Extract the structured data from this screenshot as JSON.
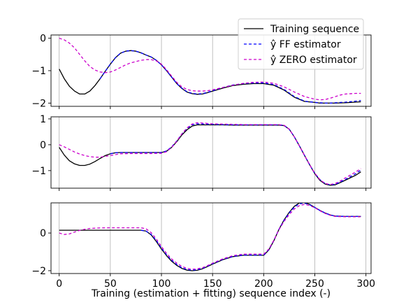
{
  "chart_data": [
    {
      "type": "line",
      "panel": "top",
      "xlim": [
        -8,
        305
      ],
      "ylim": [
        -2.1,
        0.1
      ],
      "xticks": [
        0,
        50,
        100,
        150,
        200,
        250,
        300
      ],
      "yticks": [
        0,
        -1,
        -2
      ],
      "ytick_labels": [
        "0",
        "−1",
        "−2"
      ],
      "grid_x": true,
      "legend_position": "top-right",
      "legend": [
        {
          "label": "Training sequence",
          "color": "#000000",
          "style": "solid"
        },
        {
          "label": "ŷ FF estimator",
          "color": "#0000ff",
          "style": "dashed"
        },
        {
          "label": "ŷ ZERO estimator",
          "color": "#cc00cc",
          "style": "dashed"
        }
      ],
      "series": [
        {
          "name": "Training sequence",
          "color": "#000000",
          "dash": "",
          "x": [
            0,
            5,
            10,
            15,
            20,
            25,
            30,
            35,
            40,
            45,
            50,
            55,
            60,
            65,
            70,
            75,
            80,
            85,
            90,
            95,
            100,
            105,
            110,
            115,
            120,
            125,
            130,
            135,
            140,
            145,
            150,
            160,
            170,
            180,
            190,
            200,
            210,
            220,
            230,
            240,
            250,
            255,
            260,
            265,
            270,
            280,
            290,
            295
          ],
          "y": [
            -0.95,
            -1.25,
            -1.48,
            -1.63,
            -1.72,
            -1.72,
            -1.63,
            -1.46,
            -1.25,
            -1.02,
            -0.8,
            -0.6,
            -0.46,
            -0.4,
            -0.38,
            -0.4,
            -0.45,
            -0.52,
            -0.58,
            -0.68,
            -0.82,
            -1.0,
            -1.2,
            -1.4,
            -1.55,
            -1.66,
            -1.71,
            -1.73,
            -1.72,
            -1.68,
            -1.63,
            -1.54,
            -1.46,
            -1.42,
            -1.4,
            -1.4,
            -1.45,
            -1.6,
            -1.82,
            -1.95,
            -1.98,
            -2.0,
            -2.0,
            -2.0,
            -2.0,
            -1.99,
            -1.97,
            -1.96
          ]
        },
        {
          "name": "ŷ FF estimator",
          "color": "#0000ff",
          "dash": "4,3",
          "x": [
            40,
            45,
            50,
            55,
            60,
            65,
            70,
            75,
            80,
            85,
            90,
            95,
            100,
            105,
            110,
            115,
            120,
            125,
            130,
            135,
            140,
            145,
            150,
            160,
            170,
            180,
            190,
            200,
            210,
            220,
            230,
            240,
            250,
            255,
            260,
            265,
            270,
            280,
            290,
            295
          ],
          "y": [
            -1.25,
            -1.02,
            -0.8,
            -0.6,
            -0.46,
            -0.4,
            -0.38,
            -0.4,
            -0.45,
            -0.52,
            -0.58,
            -0.68,
            -0.82,
            -1.0,
            -1.2,
            -1.4,
            -1.54,
            -1.65,
            -1.7,
            -1.72,
            -1.71,
            -1.67,
            -1.62,
            -1.52,
            -1.44,
            -1.4,
            -1.38,
            -1.38,
            -1.43,
            -1.58,
            -1.8,
            -1.94,
            -1.98,
            -1.99,
            -2.0,
            -2.0,
            -1.99,
            -1.97,
            -1.94,
            -1.92
          ]
        },
        {
          "name": "ŷ ZERO estimator",
          "color": "#cc00cc",
          "dash": "4,3",
          "x": [
            0,
            5,
            10,
            15,
            20,
            25,
            30,
            35,
            40,
            45,
            50,
            55,
            60,
            65,
            70,
            75,
            80,
            85,
            90,
            95,
            100,
            105,
            110,
            115,
            120,
            125,
            130,
            135,
            140,
            145,
            150,
            160,
            170,
            180,
            190,
            200,
            210,
            220,
            230,
            240,
            250,
            255,
            260,
            265,
            270,
            275,
            280,
            290,
            295
          ],
          "y": [
            0.0,
            -0.05,
            -0.15,
            -0.3,
            -0.5,
            -0.7,
            -0.87,
            -0.98,
            -1.04,
            -1.06,
            -1.04,
            -0.98,
            -0.9,
            -0.82,
            -0.76,
            -0.72,
            -0.68,
            -0.66,
            -0.66,
            -0.7,
            -0.8,
            -0.97,
            -1.17,
            -1.36,
            -1.5,
            -1.58,
            -1.62,
            -1.63,
            -1.63,
            -1.62,
            -1.59,
            -1.52,
            -1.45,
            -1.39,
            -1.36,
            -1.35,
            -1.39,
            -1.5,
            -1.66,
            -1.8,
            -1.88,
            -1.9,
            -1.89,
            -1.85,
            -1.8,
            -1.75,
            -1.72,
            -1.7,
            -1.7
          ]
        }
      ]
    },
    {
      "type": "line",
      "panel": "middle",
      "xlim": [
        -8,
        305
      ],
      "ylim": [
        -1.68,
        1.08
      ],
      "xticks": [
        0,
        50,
        100,
        150,
        200,
        250,
        300
      ],
      "yticks": [
        1,
        0,
        -1
      ],
      "ytick_labels": [
        "1",
        "0",
        "−1"
      ],
      "grid_x": true,
      "series": [
        {
          "name": "Training sequence",
          "color": "#000000",
          "dash": "",
          "x": [
            0,
            5,
            10,
            15,
            20,
            25,
            30,
            35,
            40,
            45,
            50,
            55,
            60,
            65,
            70,
            80,
            90,
            100,
            105,
            110,
            115,
            120,
            125,
            130,
            135,
            140,
            150,
            160,
            170,
            180,
            190,
            200,
            210,
            215,
            220,
            225,
            230,
            235,
            240,
            245,
            250,
            255,
            260,
            265,
            270,
            275,
            280,
            290,
            295
          ],
          "y": [
            -0.1,
            -0.4,
            -0.62,
            -0.74,
            -0.8,
            -0.8,
            -0.75,
            -0.65,
            -0.53,
            -0.42,
            -0.35,
            -0.31,
            -0.3,
            -0.3,
            -0.3,
            -0.3,
            -0.3,
            -0.3,
            -0.25,
            -0.1,
            0.12,
            0.38,
            0.58,
            0.72,
            0.77,
            0.77,
            0.77,
            0.77,
            0.76,
            0.76,
            0.76,
            0.76,
            0.76,
            0.76,
            0.74,
            0.6,
            0.3,
            -0.05,
            -0.42,
            -0.78,
            -1.12,
            -1.38,
            -1.52,
            -1.57,
            -1.55,
            -1.46,
            -1.37,
            -1.18,
            -1.05
          ]
        },
        {
          "name": "ŷ FF estimator",
          "color": "#0000ff",
          "dash": "4,3",
          "x": [
            50,
            55,
            60,
            65,
            70,
            80,
            90,
            100,
            105,
            110,
            115,
            120,
            125,
            130,
            135,
            140,
            150,
            160,
            170,
            180,
            190,
            200,
            210,
            215,
            220,
            225,
            230,
            235,
            240,
            245,
            250,
            255,
            260,
            265,
            270,
            275,
            280,
            290,
            295
          ],
          "y": [
            -0.35,
            -0.31,
            -0.3,
            -0.3,
            -0.3,
            -0.3,
            -0.3,
            -0.3,
            -0.24,
            -0.08,
            0.15,
            0.42,
            0.63,
            0.77,
            0.81,
            0.8,
            0.79,
            0.78,
            0.77,
            0.77,
            0.77,
            0.77,
            0.77,
            0.77,
            0.75,
            0.6,
            0.3,
            -0.05,
            -0.42,
            -0.78,
            -1.1,
            -1.35,
            -1.5,
            -1.55,
            -1.53,
            -1.44,
            -1.34,
            -1.12,
            -0.98
          ]
        },
        {
          "name": "ŷ ZERO estimator",
          "color": "#cc00cc",
          "dash": "4,3",
          "x": [
            0,
            5,
            10,
            15,
            20,
            25,
            30,
            35,
            40,
            45,
            50,
            55,
            60,
            70,
            80,
            90,
            100,
            105,
            110,
            115,
            120,
            125,
            130,
            135,
            140,
            150,
            160,
            170,
            180,
            190,
            200,
            210,
            215,
            220,
            225,
            230,
            235,
            240,
            245,
            250,
            255,
            260,
            265,
            270,
            275,
            280,
            290,
            295
          ],
          "y": [
            0.0,
            -0.08,
            -0.18,
            -0.28,
            -0.36,
            -0.42,
            -0.46,
            -0.48,
            -0.48,
            -0.45,
            -0.42,
            -0.38,
            -0.35,
            -0.34,
            -0.34,
            -0.34,
            -0.33,
            -0.27,
            -0.1,
            0.14,
            0.42,
            0.65,
            0.8,
            0.85,
            0.84,
            0.81,
            0.8,
            0.79,
            0.78,
            0.78,
            0.78,
            0.78,
            0.78,
            0.75,
            0.6,
            0.3,
            -0.05,
            -0.42,
            -0.78,
            -1.1,
            -1.35,
            -1.5,
            -1.54,
            -1.5,
            -1.4,
            -1.28,
            -1.05,
            -0.92
          ]
        }
      ]
    },
    {
      "type": "line",
      "panel": "bottom",
      "xlim": [
        -8,
        305
      ],
      "ylim": [
        -2.15,
        1.6
      ],
      "xticks": [
        0,
        50,
        100,
        150,
        200,
        250,
        300
      ],
      "xtick_labels": [
        "0",
        "50",
        "100",
        "150",
        "200",
        "250",
        "300"
      ],
      "yticks": [
        0,
        -2
      ],
      "ytick_labels": [
        "0",
        "−2"
      ],
      "grid_x": true,
      "xlabel": "Training (estimation + fitting) sequence index (-)",
      "series": [
        {
          "name": "Training sequence",
          "color": "#000000",
          "dash": "",
          "x": [
            0,
            20,
            40,
            60,
            80,
            85,
            90,
            95,
            100,
            105,
            110,
            115,
            120,
            125,
            130,
            135,
            140,
            145,
            150,
            160,
            170,
            180,
            190,
            200,
            205,
            210,
            215,
            220,
            225,
            230,
            235,
            240,
            245,
            250,
            255,
            260,
            265,
            270,
            280,
            290,
            295
          ],
          "y": [
            0.15,
            0.15,
            0.15,
            0.15,
            0.15,
            0.1,
            -0.1,
            -0.45,
            -0.85,
            -1.2,
            -1.5,
            -1.72,
            -1.88,
            -1.97,
            -2.0,
            -1.98,
            -1.9,
            -1.78,
            -1.65,
            -1.42,
            -1.25,
            -1.18,
            -1.18,
            -1.18,
            -0.9,
            -0.4,
            0.2,
            0.7,
            1.1,
            1.42,
            1.6,
            1.62,
            1.52,
            1.36,
            1.2,
            1.06,
            0.96,
            0.9,
            0.88,
            0.88,
            0.88
          ]
        },
        {
          "name": "ŷ FF estimator",
          "color": "#0000ff",
          "dash": "4,3",
          "x": [
            80,
            85,
            90,
            95,
            100,
            105,
            110,
            115,
            120,
            125,
            130,
            135,
            140,
            145,
            150,
            160,
            170,
            180,
            190,
            200,
            205,
            210,
            215,
            220,
            225,
            230,
            235,
            240,
            245,
            250,
            255,
            260,
            265,
            270,
            280,
            290,
            295
          ],
          "y": [
            0.15,
            0.1,
            -0.08,
            -0.4,
            -0.8,
            -1.15,
            -1.45,
            -1.68,
            -1.85,
            -1.94,
            -1.97,
            -1.95,
            -1.88,
            -1.76,
            -1.63,
            -1.4,
            -1.24,
            -1.17,
            -1.17,
            -1.17,
            -0.88,
            -0.38,
            0.2,
            0.68,
            1.06,
            1.38,
            1.56,
            1.58,
            1.5,
            1.36,
            1.2,
            1.06,
            0.96,
            0.9,
            0.88,
            0.88,
            0.88
          ]
        },
        {
          "name": "ŷ ZERO estimator",
          "color": "#cc00cc",
          "dash": "4,3",
          "x": [
            0,
            5,
            10,
            15,
            20,
            25,
            30,
            40,
            50,
            60,
            70,
            80,
            85,
            90,
            95,
            100,
            105,
            110,
            115,
            120,
            125,
            130,
            135,
            140,
            145,
            150,
            160,
            170,
            180,
            190,
            200,
            205,
            210,
            215,
            220,
            225,
            230,
            235,
            240,
            245,
            250,
            255,
            260,
            265,
            270,
            280,
            290,
            295
          ],
          "y": [
            0.0,
            -0.08,
            -0.05,
            0.05,
            0.14,
            0.2,
            0.24,
            0.27,
            0.28,
            0.28,
            0.28,
            0.28,
            0.22,
            0.02,
            -0.32,
            -0.72,
            -1.08,
            -1.38,
            -1.6,
            -1.77,
            -1.88,
            -1.92,
            -1.9,
            -1.84,
            -1.73,
            -1.6,
            -1.37,
            -1.2,
            -1.12,
            -1.12,
            -1.12,
            -0.85,
            -0.38,
            0.18,
            0.62,
            0.98,
            1.28,
            1.46,
            1.52,
            1.46,
            1.34,
            1.18,
            1.04,
            0.94,
            0.88,
            0.86,
            0.86,
            0.86
          ]
        }
      ]
    }
  ]
}
